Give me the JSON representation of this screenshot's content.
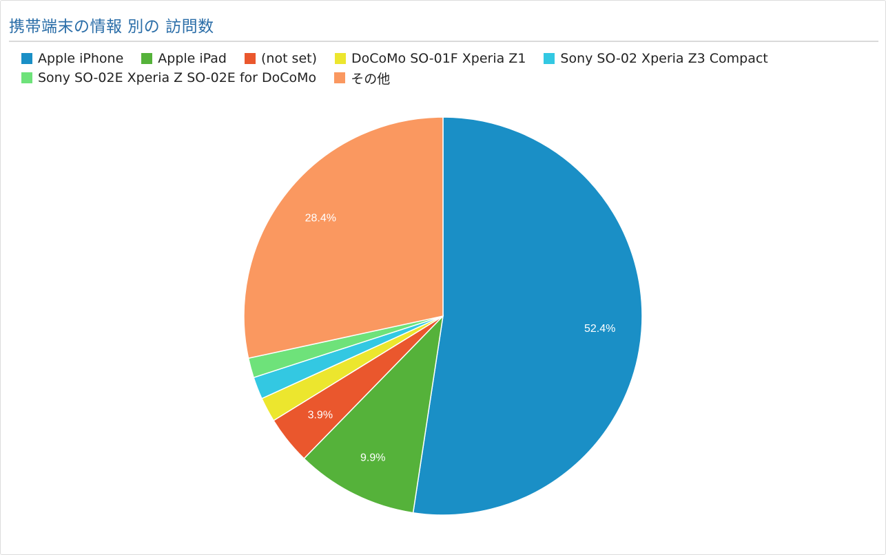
{
  "widget": {
    "title": "携帯端末の情報 別の 訪問数"
  },
  "chart_data": {
    "type": "pie",
    "title": "携帯端末の情報 別の 訪問数",
    "legend_position": "top",
    "start_angle": "12 o'clock, clockwise",
    "slices": [
      {
        "name": "Apple iPhone",
        "value": 52.4,
        "label": "52.4%",
        "color": "#1a8fc6"
      },
      {
        "name": "Apple iPad",
        "value": 9.9,
        "label": "9.9%",
        "color": "#55b23a"
      },
      {
        "name": "(not set)",
        "value": 3.9,
        "label": "3.9%",
        "color": "#ea572d"
      },
      {
        "name": "DoCoMo SO-01F Xperia Z1",
        "value": 2.0,
        "label": "",
        "color": "#ece62e"
      },
      {
        "name": "Sony SO-02 Xperia Z3 Compact",
        "value": 1.8,
        "label": "",
        "color": "#33c8e2"
      },
      {
        "name": "Sony SO-02E Xperia Z SO-02E for DoCoMo",
        "value": 1.6,
        "label": "",
        "color": "#6ee27a"
      },
      {
        "name": "その他",
        "value": 28.4,
        "label": "28.4%",
        "color": "#fa9860"
      }
    ]
  }
}
